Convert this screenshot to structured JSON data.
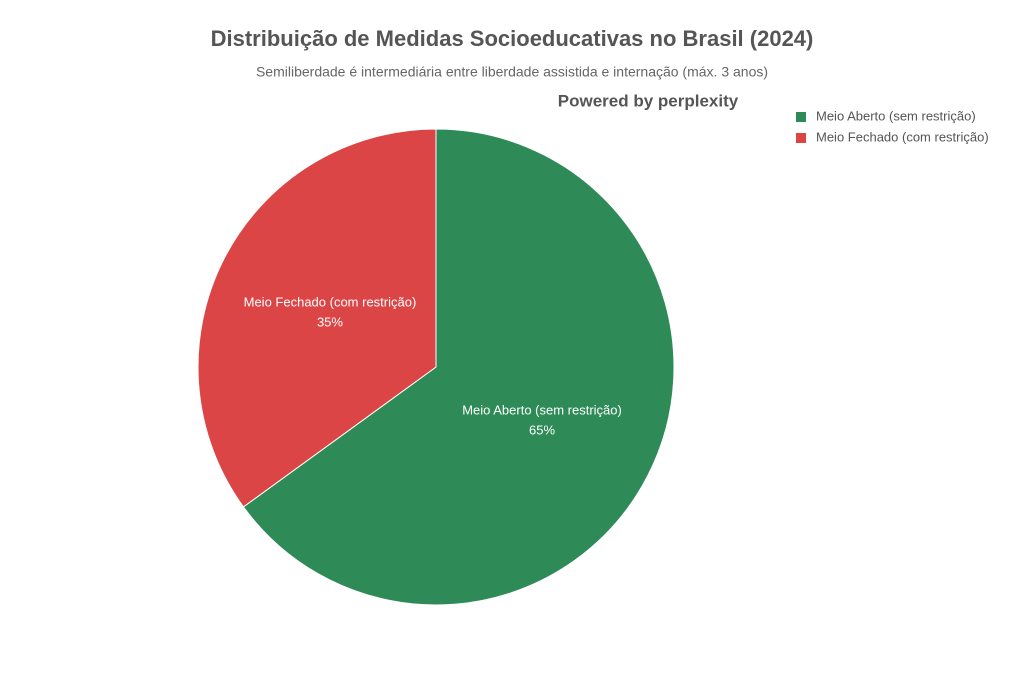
{
  "chart_data": {
    "type": "pie",
    "title": "Distribuição de Medidas Socioeducativas no Brasil (2024)",
    "subtitle": "Semiliberdade é intermediária entre liberdade assistida e internação (máx. 3 anos)",
    "watermark": "Powered by perplexity",
    "categories": [
      "Meio Aberto (sem restrição)",
      "Meio Fechado (com restrição)"
    ],
    "values": [
      65,
      35
    ],
    "value_labels": [
      "65%",
      "35%"
    ],
    "colors": [
      "#2e8b57",
      "#db4545"
    ],
    "legend": "top-right"
  }
}
